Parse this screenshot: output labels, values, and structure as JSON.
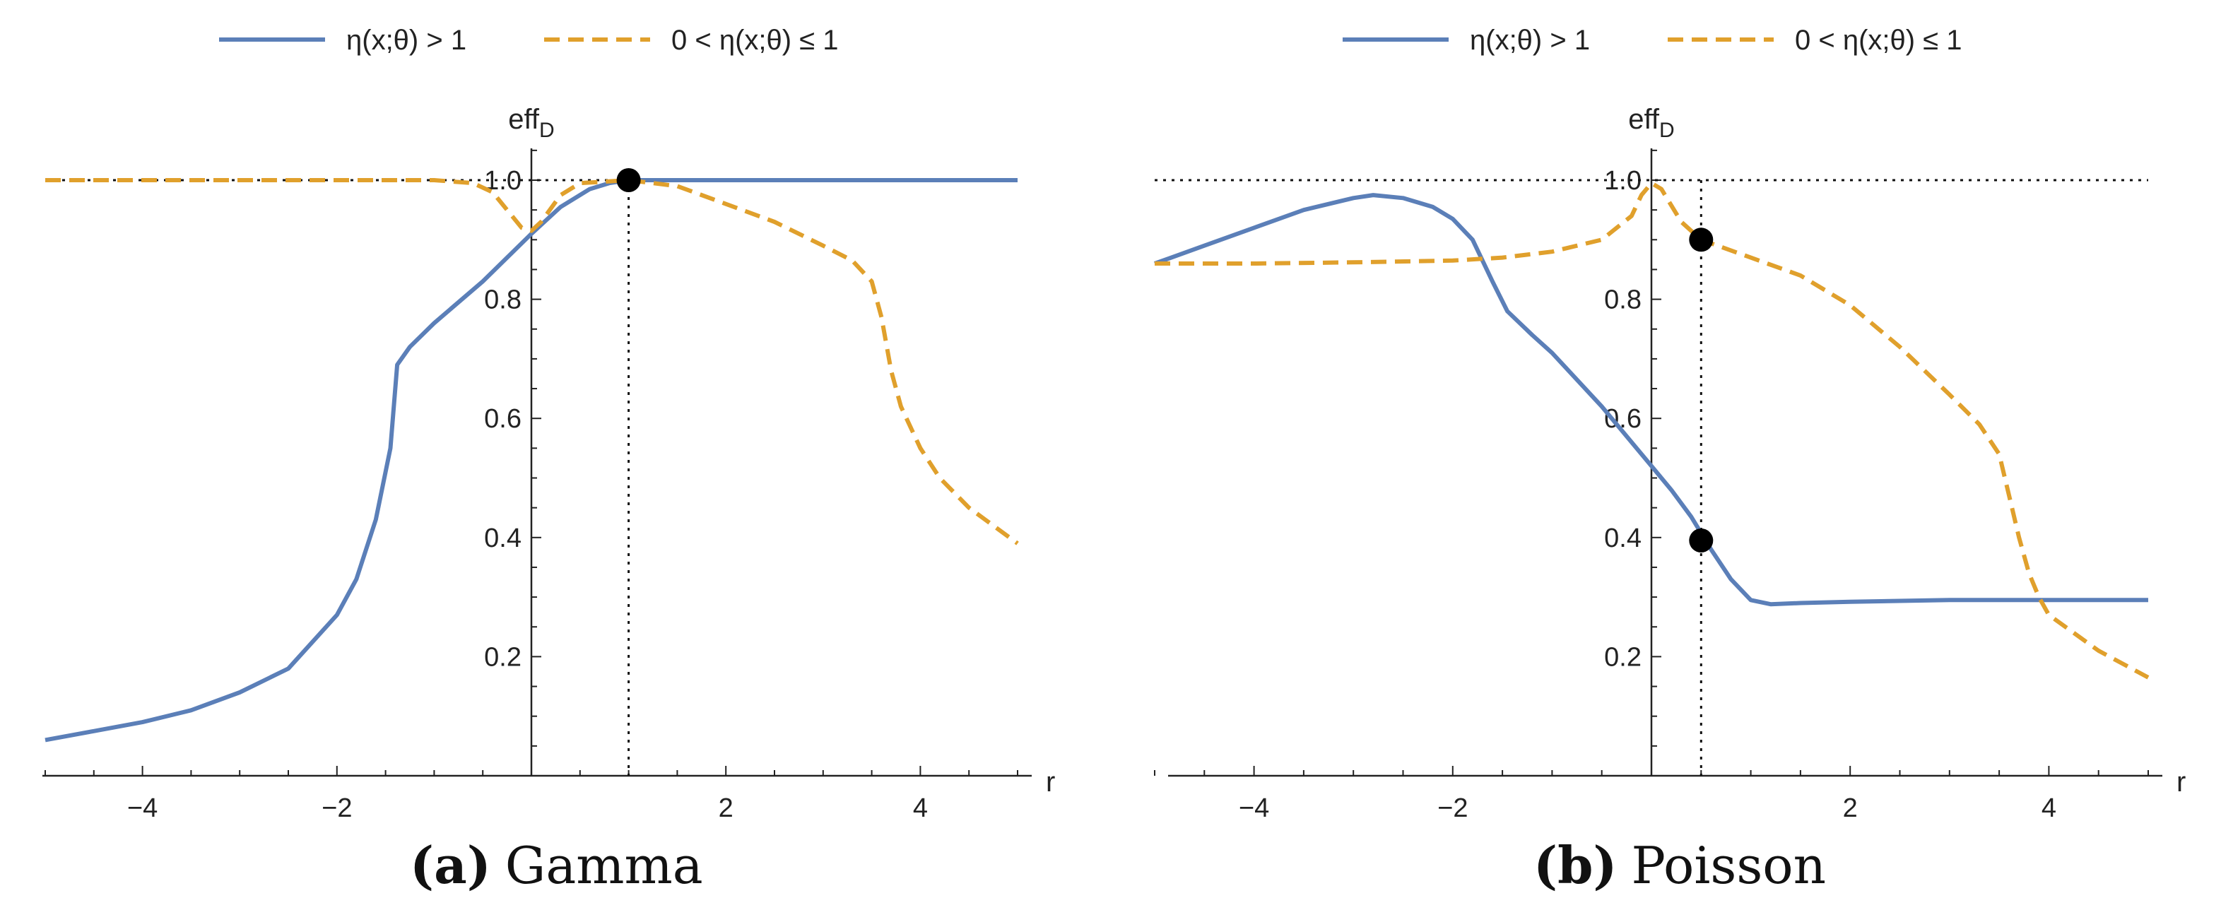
{
  "colors": {
    "blue": "#5b7fb8",
    "orange": "#e0a02c",
    "ink": "#111111",
    "dot": "#000000"
  },
  "chart_data": [
    {
      "type": "line",
      "panel": "a",
      "caption_label": "(a)",
      "caption_title": "Gamma",
      "xlabel": "r",
      "ylabel_main": "eff",
      "ylabel_sub": "D",
      "xlim": [
        -5,
        5
      ],
      "ylim": [
        0,
        1.05
      ],
      "x_ticks": [
        -4,
        -2,
        2,
        4
      ],
      "y_ticks": [
        0.2,
        0.4,
        0.6,
        0.8,
        1.0
      ],
      "y_tick_labels": [
        "0.2",
        "0.4",
        "0.6",
        "0.8",
        "1.0"
      ],
      "legend": [
        {
          "label": "η(x;θ) > 1",
          "style": "solid",
          "color": "#5b7fb8"
        },
        {
          "label": "0 < η(x;θ) ≤ 1",
          "style": "dashed",
          "color": "#e0a02c"
        }
      ],
      "reference_lines": {
        "y": 1.0,
        "x": 1.0
      },
      "markers": [
        {
          "x": 1.0,
          "y": 1.0
        }
      ],
      "series": [
        {
          "name": "η(x;θ) > 1",
          "style": "solid",
          "color": "#5b7fb8",
          "x": [
            -5,
            -4.5,
            -4,
            -3.5,
            -3,
            -2.5,
            -2,
            -1.8,
            -1.6,
            -1.45,
            -1.38,
            -1.25,
            -1,
            -0.5,
            0,
            0.3,
            0.6,
            0.8,
            1,
            2,
            3,
            4,
            5
          ],
          "y": [
            0.06,
            0.075,
            0.09,
            0.11,
            0.14,
            0.18,
            0.27,
            0.33,
            0.43,
            0.55,
            0.69,
            0.72,
            0.76,
            0.83,
            0.91,
            0.955,
            0.985,
            0.995,
            1.0,
            1.0,
            1.0,
            1.0,
            1.0
          ]
        },
        {
          "name": "0 < η(x;θ) ≤ 1",
          "style": "dashed",
          "color": "#e0a02c",
          "x": [
            -5,
            -3,
            -1,
            -0.6,
            -0.4,
            -0.2,
            -0.1,
            0,
            0.1,
            0.3,
            0.5,
            1,
            1.5,
            2,
            2.5,
            3,
            3.3,
            3.5,
            3.6,
            3.7,
            3.8,
            4,
            4.2,
            4.5,
            5
          ],
          "y": [
            1.0,
            1.0,
            1.0,
            0.995,
            0.98,
            0.94,
            0.92,
            0.915,
            0.93,
            0.975,
            0.995,
            1.0,
            0.99,
            0.96,
            0.93,
            0.89,
            0.865,
            0.83,
            0.77,
            0.68,
            0.62,
            0.55,
            0.5,
            0.45,
            0.39
          ]
        }
      ]
    },
    {
      "type": "line",
      "panel": "b",
      "caption_label": "(b)",
      "caption_title": "Poisson",
      "xlabel": "r",
      "ylabel_main": "eff",
      "ylabel_sub": "D",
      "xlim": [
        -5,
        5
      ],
      "ylim": [
        0,
        1.05
      ],
      "x_ticks": [
        -4,
        -2,
        2,
        4
      ],
      "y_ticks": [
        0.2,
        0.4,
        0.6,
        0.8,
        1.0
      ],
      "y_tick_labels": [
        "0.2",
        "0.4",
        "0.6",
        "0.8",
        "1.0"
      ],
      "legend": [
        {
          "label": "η(x;θ) > 1",
          "style": "solid",
          "color": "#5b7fb8"
        },
        {
          "label": "0 < η(x;θ) ≤ 1",
          "style": "dashed",
          "color": "#e0a02c"
        }
      ],
      "reference_lines": {
        "y": 1.0,
        "x": 0.5
      },
      "markers": [
        {
          "x": 0.5,
          "y": 0.9
        },
        {
          "x": 0.5,
          "y": 0.395
        }
      ],
      "series": [
        {
          "name": "η(x;θ) > 1",
          "style": "solid",
          "color": "#5b7fb8",
          "x": [
            -5,
            -4.5,
            -4,
            -3.5,
            -3,
            -2.8,
            -2.5,
            -2.2,
            -2,
            -1.8,
            -1.6,
            -1.45,
            -1.2,
            -1,
            -0.5,
            0,
            0.2,
            0.4,
            0.6,
            0.8,
            1,
            1.2,
            1.5,
            2,
            3,
            4,
            5
          ],
          "y": [
            0.86,
            0.89,
            0.92,
            0.95,
            0.97,
            0.975,
            0.97,
            0.955,
            0.935,
            0.9,
            0.83,
            0.78,
            0.74,
            0.71,
            0.62,
            0.52,
            0.48,
            0.435,
            0.38,
            0.33,
            0.295,
            0.288,
            0.29,
            0.292,
            0.295,
            0.295,
            0.295
          ]
        },
        {
          "name": "0 < η(x;θ) ≤ 1",
          "style": "dashed",
          "color": "#e0a02c",
          "x": [
            -5,
            -4,
            -3,
            -2,
            -1.5,
            -1,
            -0.5,
            -0.2,
            -0.1,
            0,
            0.1,
            0.3,
            0.5,
            1,
            1.5,
            2,
            2.5,
            3,
            3.3,
            3.5,
            3.6,
            3.7,
            3.8,
            3.9,
            4,
            4.5,
            5
          ],
          "y": [
            0.86,
            0.86,
            0.862,
            0.865,
            0.87,
            0.88,
            0.9,
            0.94,
            0.975,
            0.995,
            0.985,
            0.93,
            0.9,
            0.87,
            0.84,
            0.79,
            0.72,
            0.64,
            0.59,
            0.54,
            0.47,
            0.4,
            0.34,
            0.3,
            0.27,
            0.21,
            0.165
          ]
        }
      ]
    }
  ]
}
